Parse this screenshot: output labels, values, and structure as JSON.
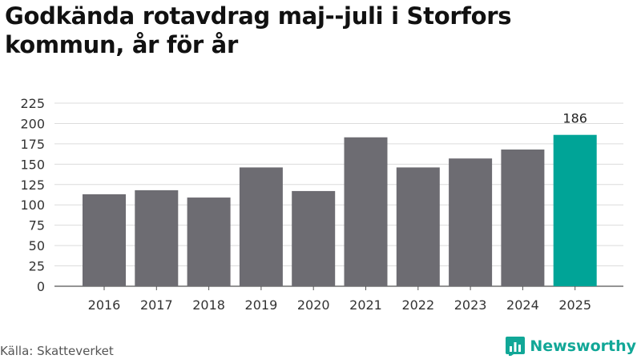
{
  "header": {
    "title": "Godkända rotavdrag maj--juli i Storfors kommun, år för år"
  },
  "footer": {
    "source": "Källa: Skatteverket",
    "brand": "Newsworthy",
    "brand_icon": "newsworthy-logo-icon"
  },
  "colors": {
    "bar": "#6d6c72",
    "highlight": "#00a497",
    "brand": "#11a797"
  },
  "chart_data": {
    "type": "bar",
    "title": "Godkända rotavdrag maj--juli i Storfors kommun, år för år",
    "xlabel": "",
    "ylabel": "",
    "categories": [
      "2016",
      "2017",
      "2018",
      "2019",
      "2020",
      "2021",
      "2022",
      "2023",
      "2024",
      "2025"
    ],
    "values": [
      113,
      118,
      109,
      146,
      117,
      183,
      146,
      157,
      168,
      186
    ],
    "highlight_index": 9,
    "value_labels": [
      {
        "index": 9,
        "text": "186"
      }
    ],
    "ylim": [
      0,
      225
    ],
    "yticks": [
      "0",
      "25",
      "50",
      "75",
      "100",
      "125",
      "150",
      "175",
      "200",
      "225"
    ],
    "grid": true,
    "legend": "none"
  }
}
